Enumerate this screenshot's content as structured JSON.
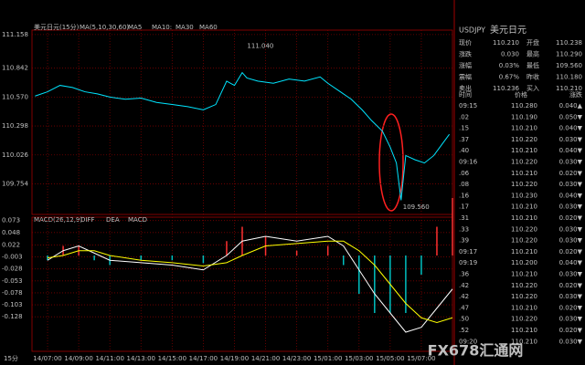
{
  "chart_data": [
    {
      "type": "line",
      "title": "美元日元(15分)",
      "subtitle": "MA(5,10,30,60)",
      "ma_legend": [
        {
          "name": "MA5",
          "color": "#ffffff"
        },
        {
          "name": "MA10:",
          "color": "#ffff00"
        },
        {
          "name": "MA30",
          "color": "#ff00ff"
        },
        {
          "name": "MA60",
          "color": "#00ff00"
        }
      ],
      "x": [
        -0.8,
        0,
        0.8,
        1.6,
        2.4,
        3.2,
        4,
        5,
        6,
        7,
        8,
        9,
        10,
        10.8,
        11.5,
        12,
        12.5,
        12.8,
        13.5,
        14.5,
        15.5,
        16.5,
        17.5,
        18,
        18.8,
        19.5,
        20.2,
        20.8,
        21.5,
        22,
        22.4,
        22.7,
        23,
        23.6,
        24.2,
        24.8,
        25.3,
        25.8
      ],
      "series": [
        {
          "color": "#00e5ff",
          "values": [
            110.58,
            110.62,
            110.68,
            110.66,
            110.62,
            110.6,
            110.57,
            110.55,
            110.56,
            110.52,
            110.5,
            110.48,
            110.45,
            110.5,
            110.72,
            110.68,
            110.8,
            110.75,
            110.72,
            110.7,
            110.74,
            110.72,
            110.76,
            110.7,
            110.62,
            110.55,
            110.45,
            110.35,
            110.25,
            110.1,
            109.95,
            109.6,
            110.02,
            109.98,
            109.95,
            110.02,
            110.12,
            110.22
          ]
        }
      ],
      "annotations": [
        {
          "x": 12.7,
          "y": 111.04,
          "label": "111.040"
        },
        {
          "x": 22.7,
          "y": 109.56,
          "label": "109.560"
        }
      ],
      "ylim": [
        109.466,
        111.2
      ],
      "yticks": [
        {
          "value": 111.158,
          "label": "111.158"
        },
        {
          "value": 110.842,
          "label": "110.842"
        },
        {
          "value": 110.57,
          "label": "110.570"
        },
        {
          "value": 110.298,
          "label": "110.298"
        },
        {
          "value": 110.026,
          "label": "110.026"
        },
        {
          "value": 109.754,
          "label": "109.754"
        }
      ],
      "xlim": [
        -1,
        26
      ],
      "xticks": [
        {
          "value": 0,
          "label": "14/07:00"
        },
        {
          "value": 2,
          "label": "14/09:00"
        },
        {
          "value": 4,
          "label": "14/11:00"
        },
        {
          "value": 6,
          "label": "14/13:00"
        },
        {
          "value": 8,
          "label": "14/15:00"
        },
        {
          "value": 10,
          "label": "14/17:00"
        },
        {
          "value": 12,
          "label": "14/19:00"
        },
        {
          "value": 14,
          "label": "14/21:00"
        },
        {
          "value": 16,
          "label": "14/23:00"
        },
        {
          "value": 18,
          "label": "15/01:00"
        },
        {
          "value": 20,
          "label": "15/03:00"
        },
        {
          "value": 22,
          "label": "15/05:00"
        },
        {
          "value": 24,
          "label": "15/07:00"
        }
      ],
      "grid": true
    },
    {
      "type": "line",
      "title": "MACD(26,12,9)",
      "x": [
        0,
        1,
        2,
        3,
        4,
        6,
        8,
        10,
        11.5,
        12.5,
        14,
        16,
        18,
        19,
        20,
        21,
        22,
        23,
        24,
        25,
        26
      ],
      "series": [
        {
          "name": "DIFF",
          "color": "#ffffff",
          "values": [
            -0.01,
            0.01,
            0.02,
            0.005,
            -0.01,
            -0.015,
            -0.02,
            -0.03,
            0,
            0.03,
            0.04,
            0.03,
            0.04,
            0.02,
            -0.03,
            -0.08,
            -0.12,
            -0.16,
            -0.15,
            -0.11,
            -0.07
          ]
        },
        {
          "name": "DEA",
          "color": "#ffff00",
          "values": [
            -0.005,
            0,
            0.01,
            0.01,
            0,
            -0.01,
            -0.015,
            -0.022,
            -0.015,
            0,
            0.02,
            0.025,
            0.03,
            0.03,
            0.01,
            -0.02,
            -0.06,
            -0.1,
            -0.13,
            -0.14,
            -0.13
          ]
        }
      ],
      "histogram": {
        "name": "MACD",
        "values": [
          -0.01,
          0.02,
          0.02,
          -0.01,
          -0.02,
          -0.01,
          -0.01,
          -0.016,
          0.03,
          0.06,
          0.04,
          0.01,
          0.02,
          -0.02,
          -0.08,
          -0.12,
          -0.12,
          -0.12,
          -0.04,
          0.06,
          0.12
        ]
      },
      "ylim": [
        -0.2,
        0.08
      ],
      "yticks": [
        0.073,
        0.048,
        0.022,
        -0.003,
        -0.028,
        -0.053,
        -0.078,
        -0.103,
        -0.128
      ],
      "xlim": [
        -1,
        26
      ],
      "grid": true
    }
  ],
  "period": "15分",
  "watermark": "FX678汇通网",
  "quote": {
    "symbol": "USDJPY",
    "name": "美元日元",
    "rows": [
      [
        "现价",
        "110.210",
        "开盘",
        "110.238"
      ],
      [
        "涨跌",
        "0.030",
        "最高",
        "110.290"
      ],
      [
        "涨幅",
        "0.03%",
        "最低",
        "109.560"
      ],
      [
        "震幅",
        "0.67%",
        "昨收",
        "110.180"
      ],
      [
        "卖出",
        "110.236",
        "买入",
        "110.210"
      ]
    ]
  },
  "ticks_table": {
    "header": [
      "时间",
      "价格",
      "涨跌"
    ],
    "rows": [
      [
        "09:15",
        "110.280",
        "0.040▲"
      ],
      [
        ".02",
        "110.190",
        "0.050▼"
      ],
      [
        ".15",
        "110.210",
        "0.040▼"
      ],
      [
        ".37",
        "110.220",
        "0.030▼"
      ],
      [
        ".40",
        "110.210",
        "0.040▼"
      ],
      [
        "09:16",
        "110.220",
        "0.030▼"
      ],
      [
        ".06",
        "110.210",
        "0.020▼"
      ],
      [
        ".08",
        "110.220",
        "0.030▼"
      ],
      [
        ".16",
        "110.230",
        "0.040▼"
      ],
      [
        ".17",
        "110.210",
        "0.030▼"
      ],
      [
        ".31",
        "110.210",
        "0.020▼"
      ],
      [
        ".33",
        "110.220",
        "0.030▼"
      ],
      [
        ".39",
        "110.220",
        "0.030▼"
      ],
      [
        "09:17",
        "110.210",
        "0.020▼"
      ],
      [
        "09:19",
        "110.200",
        "0.040▼"
      ],
      [
        ".36",
        "110.210",
        "0.030▼"
      ],
      [
        ".42",
        "110.220",
        "0.020▼"
      ],
      [
        ".42",
        "110.220",
        "0.030▼"
      ],
      [
        ".47",
        "110.210",
        "0.020▼"
      ],
      [
        ".50",
        "110.220",
        "0.030▼"
      ],
      [
        ".52",
        "110.210",
        "0.020▼"
      ],
      [
        "09:20",
        "110.210",
        "0.030▼"
      ]
    ]
  }
}
